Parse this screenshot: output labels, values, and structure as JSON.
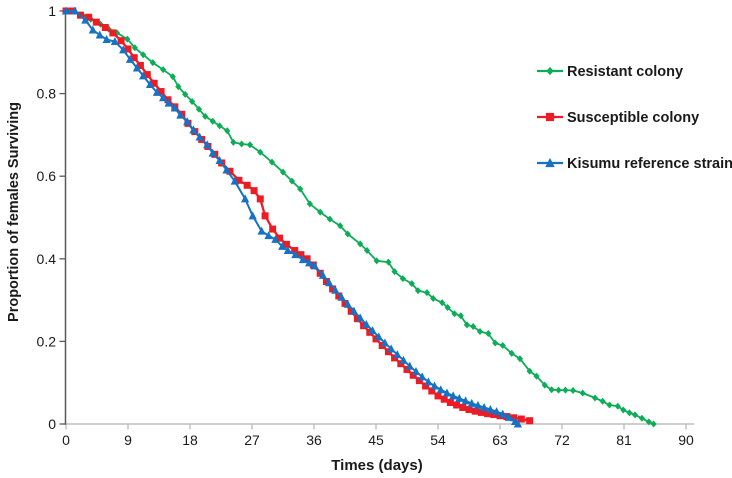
{
  "figure": {
    "xlabel": "Times (days)",
    "ylabel": "Proportion of females Surviving"
  },
  "chart_data": {
    "type": "line",
    "title": "",
    "xlabel": "Times (days)",
    "ylabel": "Proportion of females Surviving",
    "xlim": [
      0,
      90
    ],
    "ylim": [
      0,
      1
    ],
    "x_ticks": [
      0,
      9,
      18,
      27,
      36,
      45,
      54,
      63,
      72,
      81,
      90
    ],
    "y_ticks": [
      0,
      0.2,
      0.4,
      0.6,
      0.8,
      1
    ],
    "y_tick_labels": [
      "0",
      "0.2",
      "0.4",
      "0.6",
      "0.8",
      "1"
    ],
    "grid": false,
    "legend_position": "right",
    "axis_colors": {
      "x_axis": "#bfbfbf",
      "y_axis": "#595959",
      "tick_text": "#1a1a1a"
    },
    "series": [
      {
        "name": "Resistant colony",
        "color": "#0cad56",
        "marker": "diamond",
        "line_width": 1.8,
        "points": [
          [
            0,
            1
          ],
          [
            1.2,
            1
          ],
          [
            2.4,
            0.99
          ],
          [
            3.6,
            0.98
          ],
          [
            5,
            0.968
          ],
          [
            6.2,
            0.956
          ],
          [
            7.4,
            0.947
          ],
          [
            8.9,
            0.932
          ],
          [
            10,
            0.911
          ],
          [
            11.2,
            0.894
          ],
          [
            12.6,
            0.875
          ],
          [
            14.1,
            0.858
          ],
          [
            15.5,
            0.841
          ],
          [
            16.3,
            0.817
          ],
          [
            17.3,
            0.798
          ],
          [
            18.3,
            0.781
          ],
          [
            19.3,
            0.762
          ],
          [
            20.2,
            0.745
          ],
          [
            21.3,
            0.733
          ],
          [
            22.3,
            0.722
          ],
          [
            23.4,
            0.71
          ],
          [
            24.3,
            0.682
          ],
          [
            25.5,
            0.678
          ],
          [
            26.7,
            0.676
          ],
          [
            28.2,
            0.658
          ],
          [
            29.9,
            0.634
          ],
          [
            31.5,
            0.61
          ],
          [
            32.8,
            0.588
          ],
          [
            34,
            0.569
          ],
          [
            35.4,
            0.533
          ],
          [
            36.9,
            0.513
          ],
          [
            38.3,
            0.496
          ],
          [
            39.8,
            0.48
          ],
          [
            40.9,
            0.46
          ],
          [
            42.7,
            0.436
          ],
          [
            43.7,
            0.42
          ],
          [
            45.1,
            0.395
          ],
          [
            46.8,
            0.392
          ],
          [
            47.7,
            0.369
          ],
          [
            48.9,
            0.352
          ],
          [
            50.2,
            0.34
          ],
          [
            51.1,
            0.323
          ],
          [
            52.4,
            0.318
          ],
          [
            53.3,
            0.304
          ],
          [
            54.6,
            0.294
          ],
          [
            55.4,
            0.282
          ],
          [
            56.4,
            0.267
          ],
          [
            57.3,
            0.262
          ],
          [
            58.2,
            0.24
          ],
          [
            59.1,
            0.236
          ],
          [
            60.1,
            0.224
          ],
          [
            61.3,
            0.219
          ],
          [
            62.3,
            0.196
          ],
          [
            63.4,
            0.19
          ],
          [
            64.7,
            0.171
          ],
          [
            65.9,
            0.158
          ],
          [
            67.3,
            0.128
          ],
          [
            68.3,
            0.116
          ],
          [
            69.5,
            0.094
          ],
          [
            70.5,
            0.083
          ],
          [
            71.5,
            0.082
          ],
          [
            72.5,
            0.082
          ],
          [
            73.6,
            0.081
          ],
          [
            75,
            0.075
          ],
          [
            76.8,
            0.063
          ],
          [
            77.9,
            0.055
          ],
          [
            78.9,
            0.046
          ],
          [
            80.1,
            0.043
          ],
          [
            80.9,
            0.034
          ],
          [
            81.8,
            0.027
          ],
          [
            82.6,
            0.022
          ],
          [
            83.6,
            0.014
          ],
          [
            84.6,
            0.005
          ],
          [
            85.3,
            0
          ]
        ]
      },
      {
        "name": "Susceptible colony",
        "color": "#ed1c24",
        "marker": "square",
        "line_width": 2.3,
        "points": [
          [
            0,
            1
          ],
          [
            1,
            1
          ],
          [
            2.1,
            0.99
          ],
          [
            3.3,
            0.985
          ],
          [
            4.4,
            0.973
          ],
          [
            5.7,
            0.96
          ],
          [
            6.8,
            0.947
          ],
          [
            8,
            0.928
          ],
          [
            9,
            0.908
          ],
          [
            9.9,
            0.887
          ],
          [
            10.8,
            0.868
          ],
          [
            11.8,
            0.846
          ],
          [
            12.8,
            0.825
          ],
          [
            13.8,
            0.805
          ],
          [
            14.8,
            0.785
          ],
          [
            15.8,
            0.768
          ],
          [
            16.8,
            0.75
          ],
          [
            17.7,
            0.728
          ],
          [
            18.7,
            0.708
          ],
          [
            19.7,
            0.689
          ],
          [
            20.6,
            0.672
          ],
          [
            21.6,
            0.653
          ],
          [
            22.6,
            0.632
          ],
          [
            23.8,
            0.612
          ],
          [
            25.1,
            0.59
          ],
          [
            26.3,
            0.578
          ],
          [
            27.3,
            0.565
          ],
          [
            28.2,
            0.545
          ],
          [
            28.9,
            0.504
          ],
          [
            30,
            0.472
          ],
          [
            31,
            0.45
          ],
          [
            32,
            0.435
          ],
          [
            33.2,
            0.42
          ],
          [
            34.1,
            0.41
          ],
          [
            35,
            0.4
          ],
          [
            35.9,
            0.385
          ],
          [
            36.9,
            0.365
          ],
          [
            37.8,
            0.345
          ],
          [
            38.7,
            0.327
          ],
          [
            39.6,
            0.31
          ],
          [
            40.5,
            0.292
          ],
          [
            41.4,
            0.273
          ],
          [
            42.3,
            0.255
          ],
          [
            43.2,
            0.238
          ],
          [
            44.1,
            0.222
          ],
          [
            45,
            0.206
          ],
          [
            45.9,
            0.19
          ],
          [
            46.8,
            0.175
          ],
          [
            47.7,
            0.16
          ],
          [
            48.6,
            0.146
          ],
          [
            49.5,
            0.132
          ],
          [
            50.4,
            0.118
          ],
          [
            51.3,
            0.105
          ],
          [
            52.2,
            0.092
          ],
          [
            53.1,
            0.08
          ],
          [
            54,
            0.068
          ],
          [
            54.9,
            0.06
          ],
          [
            55.8,
            0.052
          ],
          [
            56.7,
            0.046
          ],
          [
            57.6,
            0.04
          ],
          [
            58.5,
            0.035
          ],
          [
            59.4,
            0.031
          ],
          [
            60.3,
            0.028
          ],
          [
            61.2,
            0.025
          ],
          [
            62.1,
            0.023
          ],
          [
            63,
            0.02
          ],
          [
            64,
            0.018
          ],
          [
            65,
            0.015
          ],
          [
            66.1,
            0.012
          ],
          [
            67.3,
            0.008
          ]
        ]
      },
      {
        "name": "Kisumu reference strain",
        "color": "#1572c4",
        "marker": "triangle",
        "line_width": 2,
        "points": [
          [
            0,
            1
          ],
          [
            1.3,
            1
          ],
          [
            2.8,
            0.978
          ],
          [
            3.9,
            0.954
          ],
          [
            4.9,
            0.942
          ],
          [
            5.9,
            0.931
          ],
          [
            7.1,
            0.926
          ],
          [
            8.3,
            0.906
          ],
          [
            9.3,
            0.883
          ],
          [
            10.3,
            0.862
          ],
          [
            11.2,
            0.843
          ],
          [
            12.2,
            0.822
          ],
          [
            13.2,
            0.803
          ],
          [
            14.1,
            0.79
          ],
          [
            14.9,
            0.777
          ],
          [
            15.8,
            0.765
          ],
          [
            16.6,
            0.748
          ],
          [
            17.6,
            0.732
          ],
          [
            18.5,
            0.712
          ],
          [
            19.4,
            0.695
          ],
          [
            20.5,
            0.676
          ],
          [
            21.3,
            0.656
          ],
          [
            22.3,
            0.638
          ],
          [
            23.3,
            0.615
          ],
          [
            24.5,
            0.588
          ],
          [
            26,
            0.545
          ],
          [
            27.1,
            0.504
          ],
          [
            28.4,
            0.467
          ],
          [
            29.4,
            0.456
          ],
          [
            30.4,
            0.447
          ],
          [
            31.4,
            0.43
          ],
          [
            32.2,
            0.42
          ],
          [
            33.3,
            0.41
          ],
          [
            34.4,
            0.398
          ],
          [
            35.3,
            0.39
          ],
          [
            36.1,
            0.383
          ],
          [
            37.3,
            0.36
          ],
          [
            38.2,
            0.342
          ],
          [
            39.1,
            0.324
          ],
          [
            40,
            0.307
          ],
          [
            40.9,
            0.29
          ],
          [
            41.8,
            0.273
          ],
          [
            42.7,
            0.257
          ],
          [
            43.6,
            0.241
          ],
          [
            44.5,
            0.226
          ],
          [
            45.4,
            0.211
          ],
          [
            46.3,
            0.196
          ],
          [
            47.2,
            0.182
          ],
          [
            48.1,
            0.168
          ],
          [
            49,
            0.154
          ],
          [
            49.9,
            0.14
          ],
          [
            50.8,
            0.127
          ],
          [
            51.7,
            0.114
          ],
          [
            52.6,
            0.102
          ],
          [
            53.5,
            0.092
          ],
          [
            54.4,
            0.083
          ],
          [
            55.3,
            0.075
          ],
          [
            56.2,
            0.068
          ],
          [
            57.1,
            0.062
          ],
          [
            58,
            0.056
          ],
          [
            58.9,
            0.05
          ],
          [
            59.8,
            0.045
          ],
          [
            60.7,
            0.04
          ],
          [
            61.6,
            0.035
          ],
          [
            62.5,
            0.03
          ],
          [
            63.4,
            0.024
          ],
          [
            64.3,
            0.016
          ],
          [
            65.2,
            0.006
          ],
          [
            65.6,
            0
          ]
        ]
      }
    ]
  }
}
